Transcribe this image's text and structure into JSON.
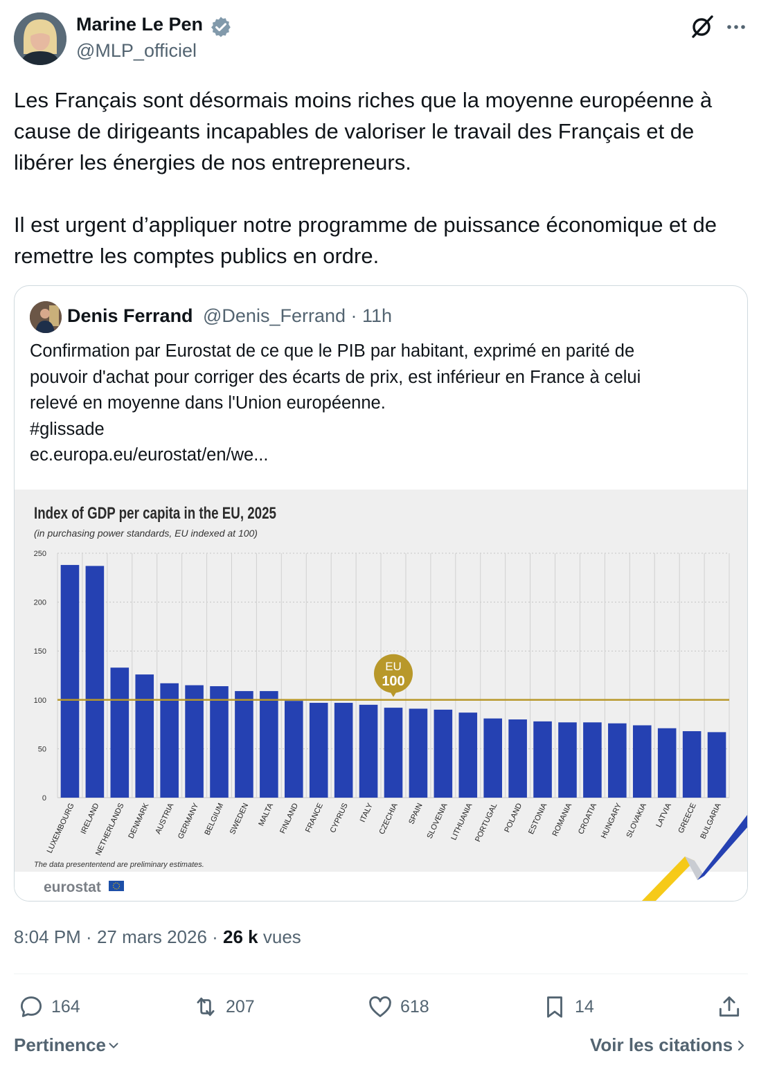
{
  "post": {
    "author_name": "Marine Le Pen",
    "author_handle": "@MLP_officiel",
    "text": "Les Français sont désormais moins riches que la moyenne européenne à cause de dirigeants incapables de valoriser le travail des Français et de libérer les énergies de nos entrepreneurs.\n\nIl est urgent d’appliquer notre programme de puissance économique et de remettre les comptes publics en ordre.",
    "time": "8:04 PM",
    "date": "27 mars 2026",
    "views_count": "26 k",
    "views_label": "vues"
  },
  "quote": {
    "author_name": "Denis Ferrand",
    "author_handle": "@Denis_Ferrand",
    "age": "11h",
    "lines": [
      "Confirmation par Eurostat de ce que le PIB par habitant, exprimé en parité de",
      "pouvoir d'achat pour corriger des écarts de prix, est inférieur en France à celui",
      "relevé en moyenne dans l'Union européenne.",
      "#glissade",
      "ec.europa.eu/eurostat/en/we..."
    ]
  },
  "chart_data": {
    "type": "bar",
    "title": "Index of GDP per capita in the EU, 2025",
    "subtitle": "(in purchasing power standards, EU indexed at 100)",
    "categories": [
      "LUXEMBOURG",
      "IRELAND",
      "NETHERLANDS",
      "DENMARK",
      "AUSTRIA",
      "GERMANY",
      "BELGIUM",
      "SWEDEN",
      "MALTA",
      "FINLAND",
      "FRANCE",
      "CYPRUS",
      "ITALY",
      "CZECHIA",
      "SPAIN",
      "SLOVENIA",
      "LITHUANIA",
      "PORTUGAL",
      "POLAND",
      "ESTONIA",
      "ROMANIA",
      "CROATIA",
      "HUNGARY",
      "SLOVAKIA",
      "LATVIA",
      "GREECE",
      "BULGARIA"
    ],
    "values": [
      238,
      237,
      133,
      126,
      117,
      115,
      114,
      109,
      109,
      99,
      97,
      97,
      95,
      92,
      91,
      90,
      87,
      81,
      80,
      78,
      77,
      77,
      76,
      74,
      71,
      68,
      67
    ],
    "ylim": [
      0,
      250
    ],
    "yticks": [
      "0",
      "50",
      "100",
      "150",
      "200",
      "250"
    ],
    "reference_value": 100,
    "reference_label_top": "EU",
    "reference_label_bottom": "100",
    "bar_color": "#2541b2",
    "reference_color": "#b8982a",
    "grid": true,
    "footnote": "The data presententend are preliminary estimates.",
    "source": "eurostat"
  },
  "actions": {
    "replies": "164",
    "reposts": "207",
    "likes": "618",
    "bookmarks": "14"
  },
  "footer": {
    "sort_label": "Pertinence",
    "quotes_label": "Voir les citations"
  }
}
